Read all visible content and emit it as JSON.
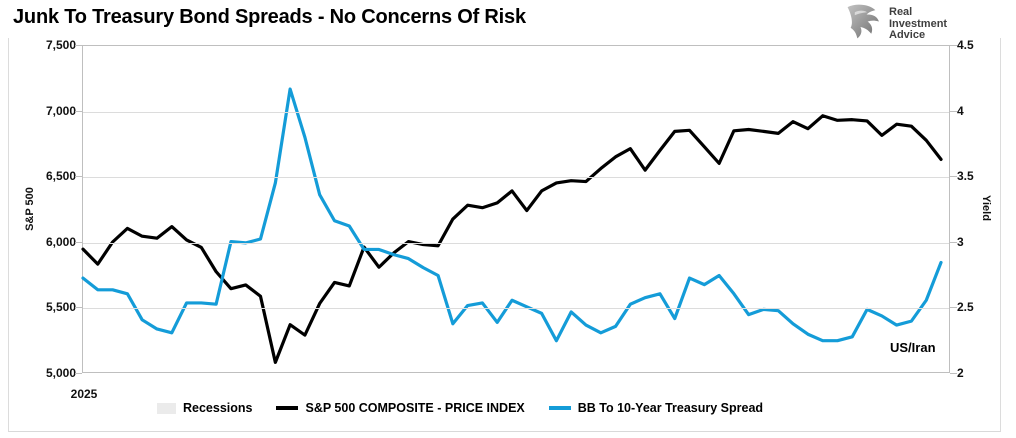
{
  "header": {
    "title": "Junk To Treasury Bond Spreads - No Concerns Of Risk",
    "logo": {
      "line1": "Real",
      "line2": "Investment",
      "line3": "Advice"
    }
  },
  "chart_data": {
    "type": "line",
    "title": "Junk To Treasury Bond Spreads - No Concerns Of Risk",
    "grid": "horizontal",
    "x_axis": {
      "year_label": "2025",
      "label_position": "start-of-axis"
    },
    "left_axis": {
      "title": "S&P 500",
      "min": 5000,
      "max": 7500,
      "ticks": [
        "7,500",
        "7,000",
        "6,500",
        "6,000",
        "5,500",
        "5,000"
      ]
    },
    "right_axis": {
      "title": "Yield",
      "min": 2,
      "max": 4.5,
      "ticks": [
        "4.5",
        "4",
        "3.5",
        "3",
        "2.5",
        "2"
      ]
    },
    "annotation": {
      "text": "US/Iran"
    },
    "series": [
      {
        "name": "S&P 500 COMPOSITE - PRICE INDEX",
        "axis": "left",
        "color": "#000000",
        "values": [
          5942,
          5827,
          5997,
          6101,
          6041,
          6026,
          6115,
          6013,
          5955,
          5770,
          5639,
          5668,
          5581,
          5074,
          5363,
          5283,
          5525,
          5687,
          5660,
          5958,
          5803,
          5912,
          6000,
          5977,
          5968,
          6173,
          6279,
          6260,
          6297,
          6389,
          6238,
          6389,
          6450,
          6467,
          6460,
          6560,
          6650,
          6713,
          6548,
          6700,
          6845,
          6854,
          6727,
          6600,
          6850,
          6860,
          6845,
          6830,
          6920,
          6866,
          6965,
          6930,
          6935,
          6925,
          6815,
          6900,
          6885,
          6777,
          6630
        ]
      },
      {
        "name": "BB To 10-Year Treasury Spread",
        "axis": "right",
        "color": "#149cd8",
        "values": [
          2.72,
          2.63,
          2.63,
          2.6,
          2.4,
          2.33,
          2.3,
          2.53,
          2.53,
          2.52,
          3.0,
          2.99,
          3.02,
          3.45,
          4.17,
          3.8,
          3.36,
          3.16,
          3.12,
          2.94,
          2.94,
          2.9,
          2.87,
          2.8,
          2.74,
          2.37,
          2.51,
          2.53,
          2.38,
          2.55,
          2.5,
          2.45,
          2.24,
          2.46,
          2.36,
          2.3,
          2.35,
          2.52,
          2.57,
          2.6,
          2.41,
          2.72,
          2.67,
          2.74,
          2.6,
          2.44,
          2.48,
          2.47,
          2.37,
          2.29,
          2.24,
          2.24,
          2.27,
          2.48,
          2.43,
          2.36,
          2.39,
          2.55,
          2.84
        ]
      }
    ],
    "legend": [
      {
        "label": "Recessions",
        "swatch": "box",
        "color": "#ebebeb"
      },
      {
        "label": "S&P 500 COMPOSITE - PRICE INDEX",
        "swatch": "line",
        "color": "#000000"
      },
      {
        "label": "BB To 10-Year Treasury Spread",
        "swatch": "line",
        "color": "#149cd8"
      }
    ],
    "legend_position": "bottom"
  }
}
